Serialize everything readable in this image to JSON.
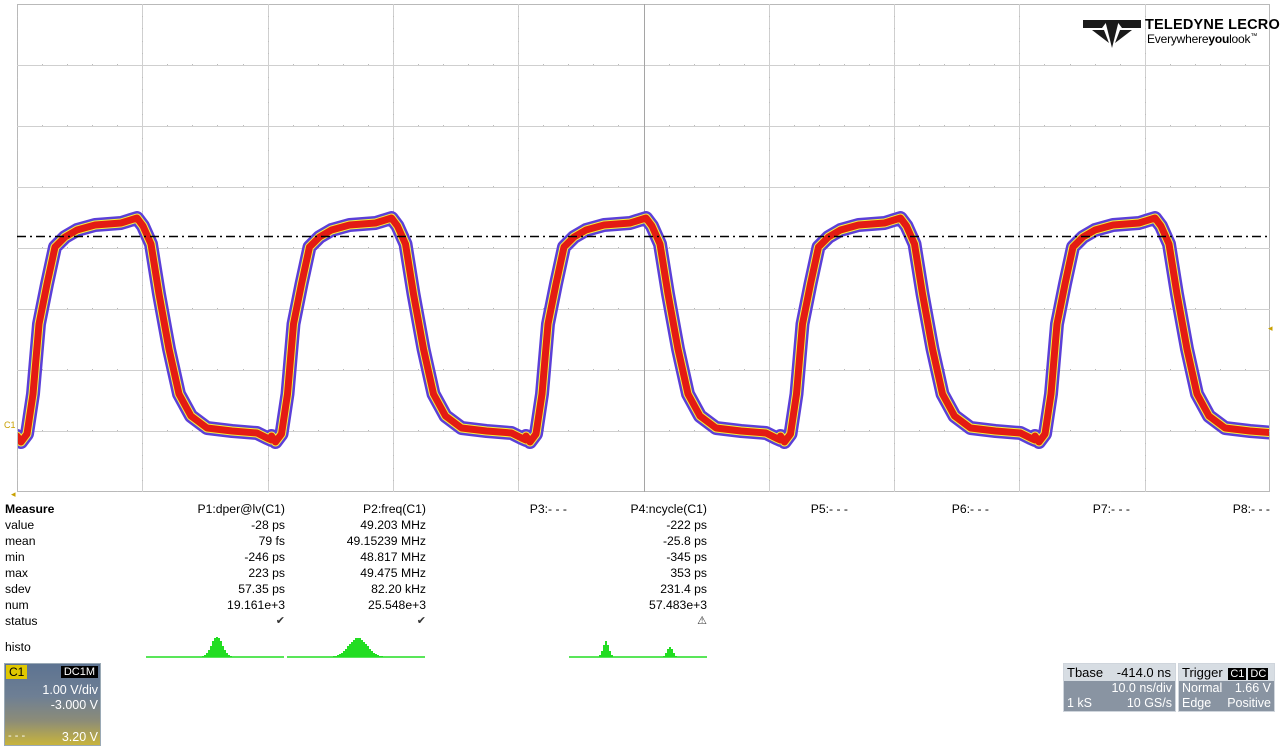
{
  "logo": {
    "brand": "TELEDYNE LECROY",
    "tagline_a": "Everywhere",
    "tagline_b": "you",
    "tagline_c": "look",
    "tm": "™"
  },
  "markers": {
    "channel": "C1",
    "ground": "◂",
    "trigger_level": "◂",
    "time_origin": "◂"
  },
  "measure": {
    "title": "Measure",
    "params": [
      "P1:dper@lv(C1)",
      "P2:freq(C1)",
      "P3:- - -",
      "P4:ncycle(C1)",
      "P5:- - -",
      "P6:- - -",
      "P7:- - -",
      "P8:- - -"
    ],
    "rows": [
      {
        "label": "value",
        "p1": "-28 ps",
        "p2": "49.203 MHz",
        "p4": "-222 ps"
      },
      {
        "label": "mean",
        "p1": "79 fs",
        "p2": "49.15239 MHz",
        "p4": "-25.8 ps"
      },
      {
        "label": "min",
        "p1": "-246 ps",
        "p2": "48.817 MHz",
        "p4": "-345 ps"
      },
      {
        "label": "max",
        "p1": "223 ps",
        "p2": "49.475 MHz",
        "p4": "353 ps"
      },
      {
        "label": "sdev",
        "p1": "57.35 ps",
        "p2": "82.20 kHz",
        "p4": "231.4 ps"
      },
      {
        "label": "num",
        "p1": "19.161e+3",
        "p2": "25.548e+3",
        "p4": "57.483e+3"
      },
      {
        "label": "status",
        "p1": "✔",
        "p2": "✔",
        "p4": "⚠"
      }
    ],
    "histo_label": "histo"
  },
  "channel": {
    "name": "C1",
    "coupling": "DC1M",
    "vdiv": "1.00 V/div",
    "offset": "-3.000 V",
    "level_marker": "- - -",
    "trigger_level": "3.20 V"
  },
  "timebase": {
    "title": "Tbase",
    "value": "-414.0 ns",
    "tdiv": "10.0 ns/div",
    "samples": "1 kS",
    "rate": "10 GS/s"
  },
  "trigger": {
    "title": "Trigger",
    "source": "C1",
    "coupling": "DC",
    "mode": "Normal",
    "level": "1.66 V",
    "type": "Edge",
    "slope": "Positive"
  },
  "colors": {
    "trace_core": "#e41b13",
    "trace_halo": "#5b3fd8",
    "trace_edge": "#f5f540",
    "grid": "#cfcfcf",
    "histo": "#22dd22",
    "trigger_line": "#000000"
  }
}
